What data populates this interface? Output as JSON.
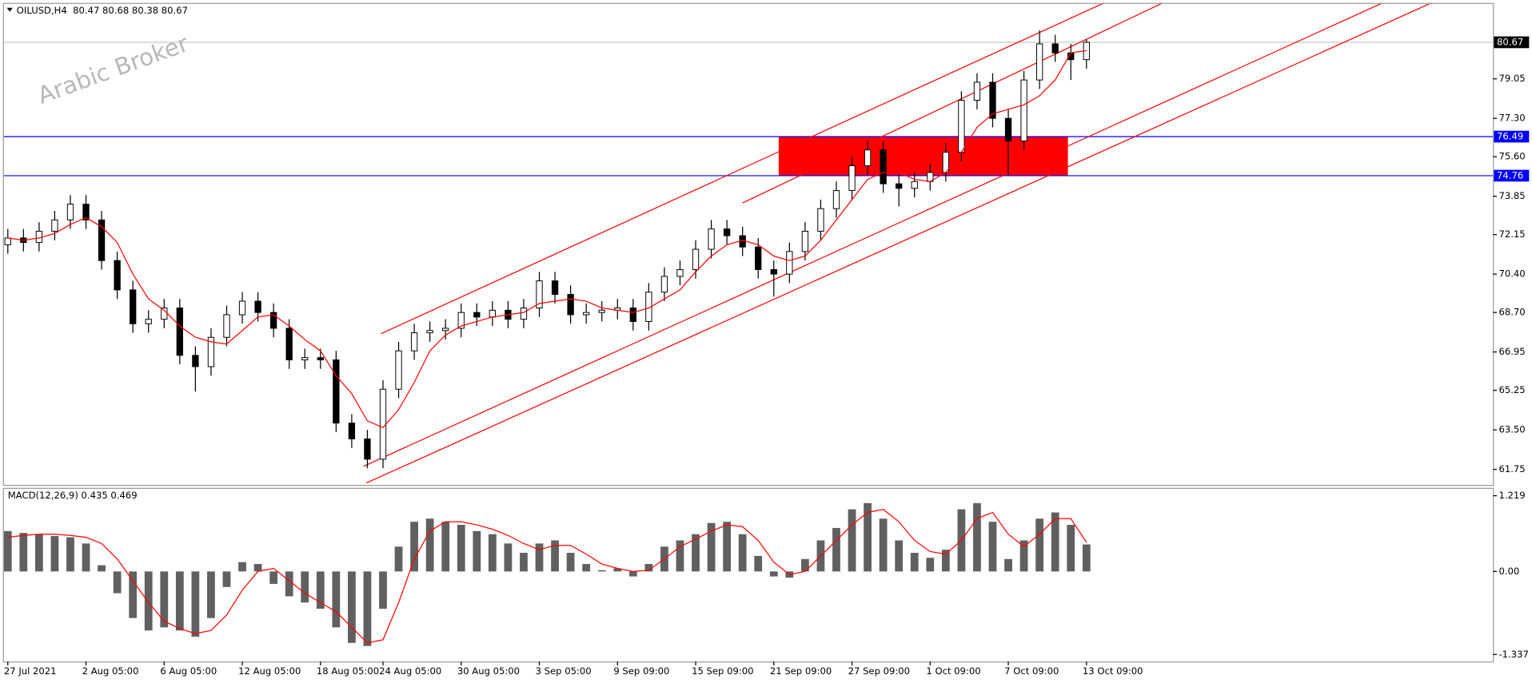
{
  "chart_data": {
    "type": "candlestick",
    "title": "OILUSD,H4  80.47 80.68 80.38 80.67",
    "watermark": "Arabic Broker",
    "categories": [
      "27 Jul 2021",
      null,
      null,
      null,
      null,
      "2 Aug 05:00",
      null,
      null,
      null,
      null,
      "6 Aug 05:00",
      null,
      null,
      null,
      null,
      "12 Aug 05:00",
      null,
      null,
      null,
      null,
      "18 Aug 05:00",
      null,
      null,
      null,
      "24 Aug 05:00",
      null,
      null,
      null,
      null,
      "30 Aug 05:00",
      null,
      null,
      null,
      null,
      "3 Sep 05:00",
      null,
      null,
      null,
      null,
      "9 Sep 09:00",
      null,
      null,
      null,
      null,
      "15 Sep 09:00",
      null,
      null,
      null,
      null,
      "21 Sep 09:00",
      null,
      null,
      null,
      null,
      "27 Sep 09:00",
      null,
      null,
      null,
      null,
      "1 Oct 09:00",
      null,
      null,
      null,
      null,
      "7 Oct 09:00",
      null,
      null,
      null,
      null,
      "13 Oct 09:00"
    ],
    "open": [
      71.7,
      72.0,
      71.8,
      72.3,
      72.8,
      73.5,
      72.8,
      71.0,
      69.7,
      68.2,
      68.4,
      68.9,
      66.8,
      66.3,
      67.6,
      68.6,
      69.2,
      68.7,
      68.0,
      66.6,
      66.7,
      66.6,
      63.8,
      63.1,
      62.2,
      65.3,
      67.0,
      67.8,
      67.9,
      68.0,
      68.7,
      68.5,
      68.8,
      68.4,
      68.9,
      70.1,
      69.5,
      68.6,
      68.7,
      68.8,
      68.9,
      68.3,
      69.6,
      70.3,
      70.6,
      71.5,
      72.4,
      72.1,
      71.6,
      70.6,
      70.4,
      71.4,
      72.3,
      73.3,
      74.1,
      75.2,
      75.9,
      74.4,
      74.2,
      74.5,
      74.9,
      75.8,
      78.1,
      78.9,
      77.3,
      76.3,
      79.0,
      80.6,
      80.2,
      79.9
    ],
    "high": [
      72.4,
      72.4,
      72.7,
      73.2,
      73.9,
      73.9,
      73.2,
      71.4,
      70.1,
      68.8,
      69.3,
      69.3,
      67.2,
      68.0,
      69.0,
      69.6,
      69.6,
      69.1,
      68.4,
      67.1,
      67.1,
      67.0,
      64.2,
      63.5,
      65.7,
      67.4,
      68.2,
      68.3,
      68.4,
      69.1,
      69.1,
      69.2,
      69.2,
      69.3,
      70.5,
      70.5,
      69.9,
      69.1,
      69.2,
      69.3,
      69.3,
      70.0,
      70.7,
      71.0,
      71.9,
      72.8,
      72.8,
      72.5,
      72.0,
      71.0,
      71.8,
      72.7,
      73.7,
      74.5,
      75.6,
      76.3,
      76.3,
      74.8,
      74.9,
      75.3,
      76.2,
      78.5,
      79.3,
      79.3,
      77.7,
      79.4,
      81.2,
      81.0,
      80.6,
      80.8
    ],
    "low": [
      71.3,
      71.4,
      71.4,
      71.9,
      72.4,
      72.4,
      70.6,
      69.3,
      67.8,
      67.8,
      68.0,
      66.4,
      65.2,
      65.9,
      67.2,
      68.2,
      68.3,
      67.6,
      66.2,
      66.2,
      66.2,
      63.4,
      62.7,
      61.8,
      61.8,
      64.9,
      66.6,
      67.4,
      67.5,
      67.6,
      68.1,
      68.1,
      68.0,
      68.0,
      68.5,
      69.1,
      68.2,
      68.2,
      68.3,
      68.4,
      67.9,
      67.9,
      69.2,
      69.9,
      70.2,
      71.1,
      71.7,
      71.2,
      70.2,
      69.4,
      70.0,
      71.0,
      71.9,
      72.9,
      73.7,
      74.8,
      74.0,
      73.4,
      73.8,
      74.1,
      74.5,
      75.4,
      77.7,
      76.9,
      74.8,
      75.9,
      78.6,
      79.8,
      79.0,
      79.5
    ],
    "close": [
      72.0,
      71.8,
      72.3,
      72.8,
      73.5,
      72.8,
      71.0,
      69.7,
      68.2,
      68.4,
      68.9,
      66.8,
      66.3,
      67.6,
      68.6,
      69.2,
      68.7,
      68.0,
      66.6,
      66.7,
      66.6,
      63.8,
      63.1,
      62.2,
      65.3,
      67.0,
      67.8,
      67.9,
      68.0,
      68.7,
      68.5,
      68.8,
      68.4,
      68.9,
      70.1,
      69.5,
      68.6,
      68.7,
      68.8,
      68.9,
      68.3,
      69.6,
      70.3,
      70.6,
      71.5,
      72.4,
      72.1,
      71.6,
      70.6,
      70.4,
      71.4,
      72.3,
      73.3,
      74.1,
      75.2,
      75.9,
      74.4,
      74.2,
      74.5,
      74.9,
      75.8,
      78.1,
      78.9,
      77.3,
      76.3,
      79.0,
      80.6,
      80.2,
      79.9,
      80.67
    ],
    "candle_color": "#000000",
    "ma": {
      "color": "#ff0000",
      "values": [
        72.0,
        71.9,
        72.0,
        72.2,
        72.6,
        72.9,
        72.5,
        71.8,
        70.4,
        69.3,
        68.8,
        68.1,
        67.6,
        67.4,
        67.3,
        67.9,
        68.5,
        68.6,
        68.1,
        67.5,
        67.0,
        65.9,
        65.1,
        63.9,
        63.6,
        64.4,
        65.6,
        67.0,
        67.7,
        68.1,
        68.3,
        68.5,
        68.6,
        68.7,
        69.1,
        69.2,
        69.3,
        69.2,
        68.9,
        68.8,
        68.7,
        68.9,
        69.3,
        69.7,
        70.5,
        71.2,
        71.7,
        71.9,
        71.7,
        71.2,
        71.0,
        71.2,
        71.9,
        72.8,
        73.7,
        74.6,
        74.9,
        74.9,
        74.6,
        74.5,
        74.9,
        75.8,
        76.9,
        77.5,
        77.7,
        77.9,
        78.3,
        79.0,
        80.2,
        80.3
      ]
    },
    "ylim": [
      61.06,
      82.37
    ],
    "yticks": [
      79.05,
      {
        "value": 77.3,
        "label": "77.30"
      },
      {
        "value": 75.6,
        "label": "75.60"
      },
      73.85,
      72.15,
      {
        "value": 70.4,
        "label": "70.40"
      },
      {
        "value": 68.7,
        "label": "68.70"
      },
      66.95,
      65.25,
      {
        "value": 63.5,
        "label": "63.50"
      },
      61.75
    ],
    "grid": false,
    "last_price": 80.67,
    "levels": [
      {
        "value": 76.49,
        "color": "#0000ff"
      },
      {
        "value": 74.76,
        "color": "#0000ff"
      }
    ],
    "zone_color": "#ff0000",
    "macd": {
      "title": "MACD(12,26,9) 0.435 0.469",
      "histogram": {
        "color": "#606060",
        "values": [
          0.65,
          0.62,
          0.6,
          0.57,
          0.55,
          0.45,
          0.1,
          -0.35,
          -0.75,
          -0.95,
          -0.9,
          -0.95,
          -1.05,
          -0.75,
          -0.25,
          0.15,
          0.12,
          -0.2,
          -0.4,
          -0.5,
          -0.6,
          -0.9,
          -1.15,
          -1.2,
          -0.6,
          0.4,
          0.8,
          0.85,
          0.8,
          0.75,
          0.65,
          0.6,
          0.45,
          0.3,
          0.45,
          0.5,
          0.3,
          0.12,
          0.02,
          0.05,
          -0.08,
          0.12,
          0.4,
          0.5,
          0.6,
          0.78,
          0.8,
          0.6,
          0.25,
          -0.08,
          -0.1,
          0.2,
          0.5,
          0.7,
          1.0,
          1.1,
          0.85,
          0.5,
          0.3,
          0.22,
          0.35,
          1.0,
          1.1,
          0.8,
          0.2,
          0.5,
          0.85,
          0.95,
          0.75,
          0.435
        ]
      },
      "signal": {
        "color": "#ff0000",
        "values": [
          0.55,
          0.58,
          0.6,
          0.6,
          0.58,
          0.55,
          0.45,
          0.2,
          -0.15,
          -0.5,
          -0.8,
          -0.92,
          -1.0,
          -0.95,
          -0.7,
          -0.3,
          0.0,
          0.05,
          -0.15,
          -0.35,
          -0.5,
          -0.65,
          -0.9,
          -1.15,
          -1.1,
          -0.5,
          0.2,
          0.65,
          0.8,
          0.8,
          0.75,
          0.68,
          0.58,
          0.45,
          0.35,
          0.42,
          0.42,
          0.28,
          0.12,
          0.05,
          0.0,
          0.02,
          0.2,
          0.4,
          0.52,
          0.65,
          0.75,
          0.72,
          0.5,
          0.15,
          -0.05,
          0.0,
          0.25,
          0.5,
          0.75,
          0.95,
          1.0,
          0.8,
          0.5,
          0.32,
          0.28,
          0.5,
          0.85,
          0.95,
          0.6,
          0.4,
          0.6,
          0.85,
          0.85,
          0.469
        ]
      },
      "ylim": [
        -1.45,
        1.33
      ],
      "yticks": [
        1.219,
        {
          "value": 0,
          "label": "0.00"
        },
        -1.337
      ]
    }
  }
}
